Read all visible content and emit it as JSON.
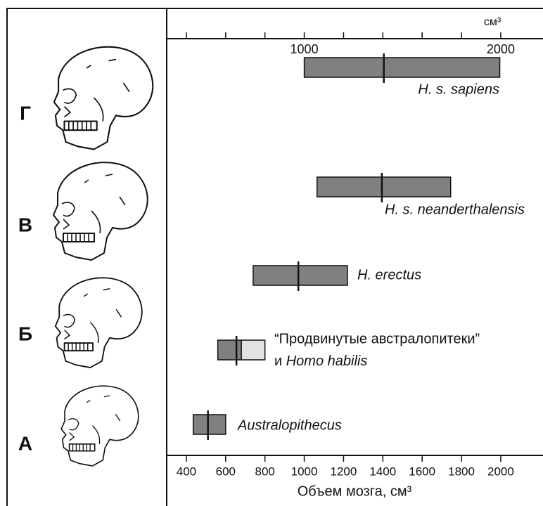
{
  "chart_data": {
    "type": "range",
    "unit": "см³",
    "xlabel": "Объем мозга, см³",
    "xlim": [
      300,
      2215
    ],
    "xticks": [
      400,
      600,
      800,
      1000,
      1200,
      1400,
      1600,
      1800,
      2000
    ],
    "top_xticks": [
      1000,
      2000
    ],
    "top_xticks_minor": [
      400,
      600,
      800,
      1200,
      1400,
      1600,
      1800
    ],
    "row_labels": [
      "Г",
      "В",
      "Б",
      "А"
    ],
    "bar_color": "#808080",
    "light_color": "#e2e2e2",
    "series": [
      {
        "name": "H. s. sapiens",
        "low": 1000,
        "high": 1995,
        "mean": 1405
      },
      {
        "name": "H. s. neanderthalensis",
        "low": 1065,
        "high": 1745,
        "mean": 1395
      },
      {
        "name": "H. erectus",
        "low": 740,
        "high": 1220,
        "mean": 970
      },
      {
        "name": "“Продвинутые австралопитеки”",
        "name_extra": [
          "и",
          "Homo habilis"
        ],
        "low": 560,
        "split": 680,
        "high": 800,
        "mean": 655
      },
      {
        "name": "Australopithecus",
        "low": 435,
        "high": 600,
        "mean": 510
      }
    ]
  }
}
